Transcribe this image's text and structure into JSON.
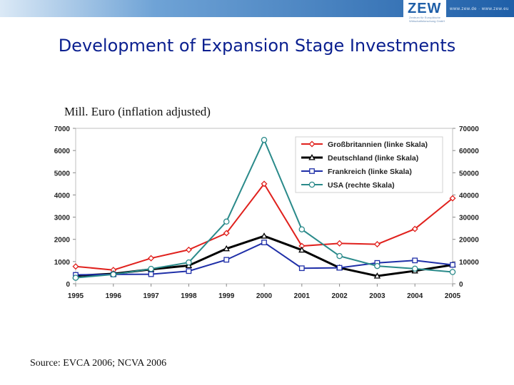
{
  "header": {
    "logo_text": "ZEW",
    "logo_subtitle": "Zentrum für Europäische Wirtschaftsforschung GmbH",
    "url": "www.zew.de · www.zew.eu"
  },
  "slide": {
    "title": "Development of Expansion Stage Investments",
    "unit_label": "Mill. Euro (inflation adjusted)",
    "source": "Source: EVCA 2006; NCVA 2006"
  },
  "colors": {
    "gb": "#e0211d",
    "de": "#000000",
    "fr": "#1f2fa8",
    "usa": "#2a8a8a",
    "topbar": "#1f5fa8",
    "title": "#0a1f8f"
  },
  "chart_data": {
    "type": "line",
    "x": [
      "1995",
      "1996",
      "1997",
      "1998",
      "1999",
      "2000",
      "2001",
      "2002",
      "2003",
      "2004",
      "2005"
    ],
    "y_left_lim": [
      0,
      7000
    ],
    "y_right_lim": [
      0,
      70000
    ],
    "y_left_ticks": [
      "0",
      "1000",
      "2000",
      "3000",
      "4000",
      "5000",
      "6000",
      "7000"
    ],
    "y_right_ticks": [
      "0",
      "10000",
      "20000",
      "30000",
      "40000",
      "50000",
      "60000",
      "70000"
    ],
    "legend_position": "top-right",
    "grid": false,
    "series": [
      {
        "name": "Großbritannien (linke Skala)",
        "key": "gb",
        "axis": "left",
        "marker": "diamond",
        "values": [
          780,
          620,
          1150,
          1530,
          2280,
          4500,
          1700,
          1820,
          1780,
          2470,
          3850
        ]
      },
      {
        "name": "Deutschland (linke Skala)",
        "key": "de",
        "axis": "left",
        "marker": "triangle",
        "values": [
          360,
          450,
          650,
          820,
          1580,
          2150,
          1520,
          720,
          350,
          580,
          850
        ]
      },
      {
        "name": "Frankreich (linke Skala)",
        "key": "fr",
        "axis": "left",
        "marker": "square",
        "values": [
          400,
          420,
          430,
          570,
          1080,
          1860,
          700,
          720,
          940,
          1050,
          850
        ]
      },
      {
        "name": "USA (rechte Skala)",
        "key": "usa",
        "axis": "right",
        "marker": "circle",
        "values": [
          2700,
          4200,
          6700,
          9600,
          28000,
          64800,
          24500,
          12500,
          8000,
          6800,
          5300
        ]
      }
    ]
  }
}
